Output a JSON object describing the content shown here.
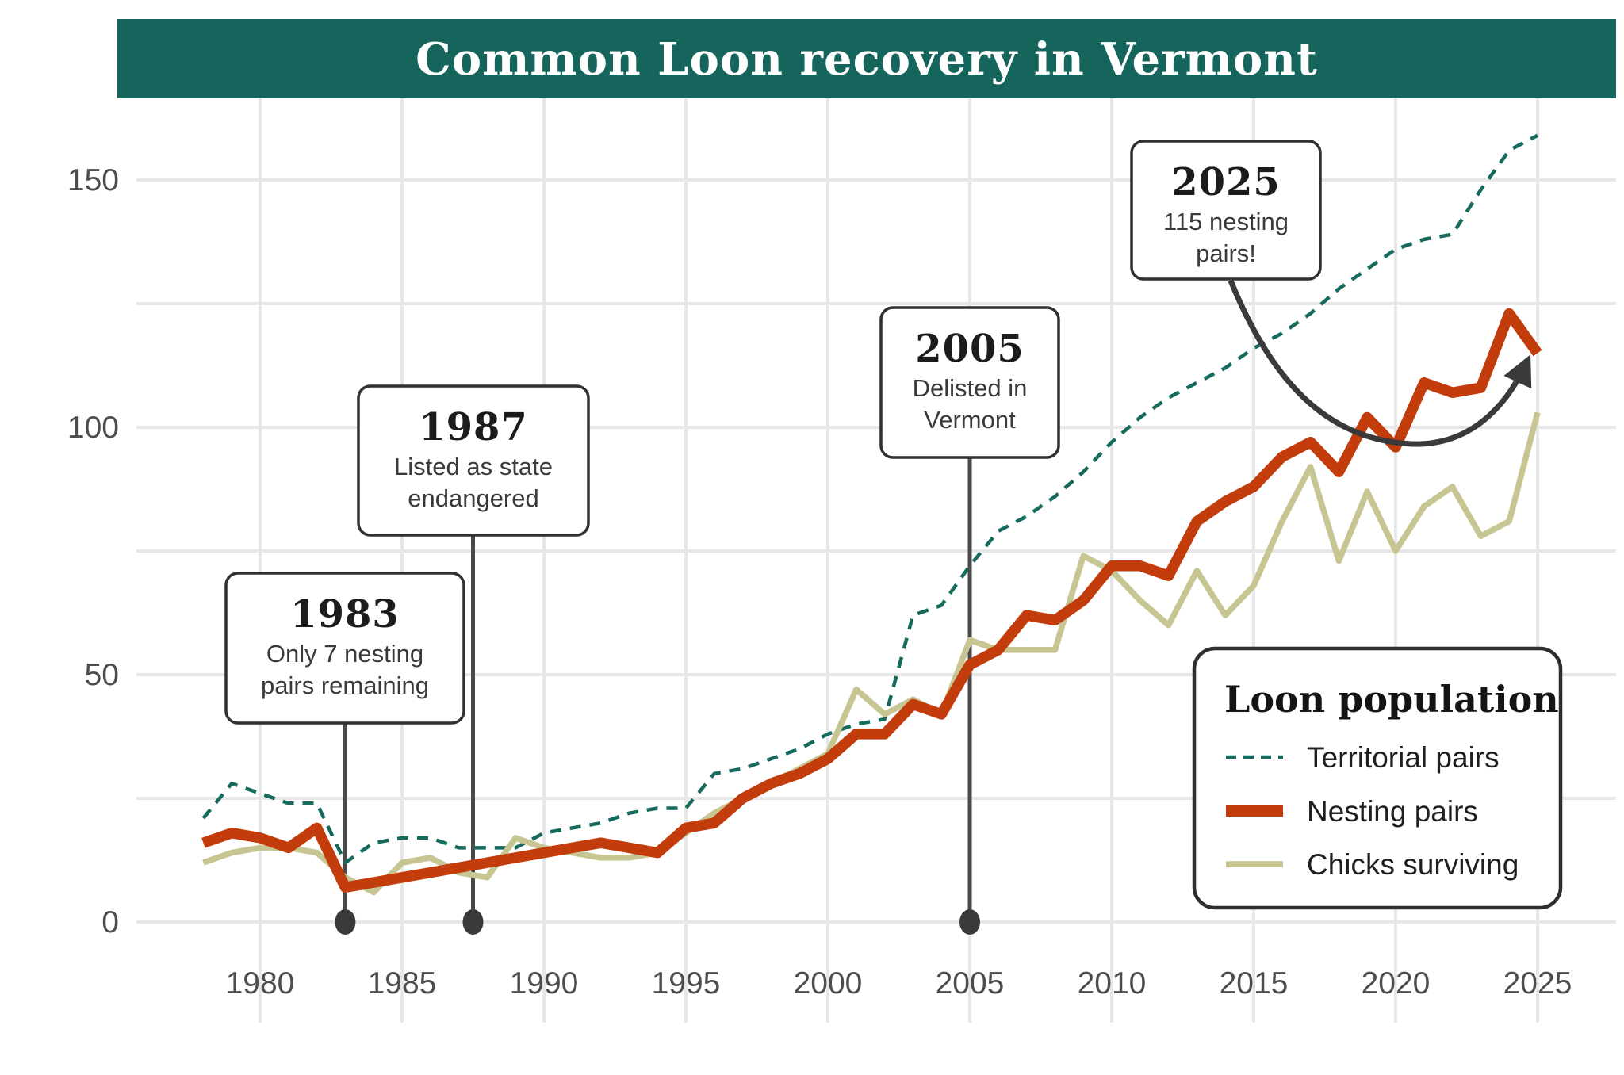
{
  "title": "Common Loon recovery in Vermont",
  "colors": {
    "title_bar": "#15655c",
    "territorial_pairs": "#166b5e",
    "nesting_pairs": "#c23d0b",
    "chicks_surviving": "#c7c693",
    "gridline": "#e7e7e7",
    "annotation_ink": "#3a3a3a",
    "tick_text": "#4d4d4d"
  },
  "legend": {
    "title": "Loon population"
  },
  "annotations": [
    {
      "id": "1983",
      "year": "1983",
      "lines": [
        "Only 7 nesting",
        "pairs remaining"
      ]
    },
    {
      "id": "1987",
      "year": "1987",
      "lines": [
        "Listed as state",
        "endangered"
      ]
    },
    {
      "id": "2005",
      "year": "2005",
      "lines": [
        "Delisted in",
        "Vermont"
      ]
    },
    {
      "id": "2025",
      "year": "2025",
      "lines": [
        "115 nesting",
        "pairs!"
      ]
    }
  ],
  "chart_data": {
    "type": "line",
    "title": "Common Loon recovery in Vermont",
    "xlabel": "",
    "ylabel": "",
    "x": [
      1978,
      1979,
      1980,
      1981,
      1982,
      1983,
      1984,
      1985,
      1986,
      1987,
      1988,
      1989,
      1990,
      1991,
      1992,
      1993,
      1994,
      1995,
      1996,
      1997,
      1998,
      1999,
      2000,
      2001,
      2002,
      2003,
      2004,
      2005,
      2006,
      2007,
      2008,
      2009,
      2010,
      2011,
      2012,
      2013,
      2014,
      2015,
      2016,
      2017,
      2018,
      2019,
      2020,
      2021,
      2022,
      2023,
      2024,
      2025
    ],
    "series": [
      {
        "name": "Territorial pairs",
        "style": "dashed",
        "color": "#166b5e",
        "values": [
          21,
          28,
          26,
          24,
          24,
          12,
          16,
          17,
          17,
          15,
          15,
          15,
          18,
          19,
          20,
          22,
          23,
          23,
          30,
          31,
          33,
          35,
          38,
          40,
          41,
          62,
          64,
          72,
          79,
          82,
          86,
          91,
          97,
          102,
          106,
          109,
          112,
          116,
          119,
          123,
          128,
          132,
          136,
          138,
          139,
          148,
          156,
          159
        ]
      },
      {
        "name": "Nesting pairs",
        "style": "solid-thick",
        "color": "#c23d0b",
        "values": [
          16,
          18,
          17,
          15,
          19,
          7,
          8,
          9,
          10,
          11,
          12,
          13,
          14,
          15,
          16,
          15,
          14,
          19,
          20,
          25,
          28,
          30,
          33,
          38,
          38,
          44,
          42,
          52,
          55,
          62,
          61,
          65,
          72,
          72,
          70,
          81,
          85,
          88,
          94,
          97,
          91,
          102,
          96,
          109,
          107,
          108,
          123,
          115
        ]
      },
      {
        "name": "Chicks surviving",
        "style": "solid",
        "color": "#c7c693",
        "values": [
          12,
          14,
          15,
          15,
          14,
          9,
          6,
          12,
          13,
          10,
          9,
          17,
          15,
          14,
          13,
          13,
          14,
          18,
          22,
          25,
          28,
          31,
          34,
          47,
          42,
          45,
          42,
          57,
          55,
          55,
          55,
          74,
          71,
          65,
          60,
          71,
          62,
          68,
          81,
          92,
          73,
          87,
          75,
          84,
          88,
          78,
          81,
          103
        ]
      }
    ],
    "xticks": [
      1980,
      1985,
      1990,
      1995,
      2000,
      2005,
      2010,
      2015,
      2020,
      2025
    ],
    "yticks": [
      0,
      50,
      100,
      150
    ],
    "ygrid_step": 25,
    "xlim": [
      1977.5,
      2027.8
    ],
    "ylim": [
      0,
      167
    ],
    "grid": true,
    "legend_position": "bottom-right",
    "event_markers": [
      {
        "label": "1983",
        "x": 1983
      },
      {
        "label": "1987",
        "x": 1987.5
      },
      {
        "label": "2005",
        "x": 2005
      }
    ]
  }
}
